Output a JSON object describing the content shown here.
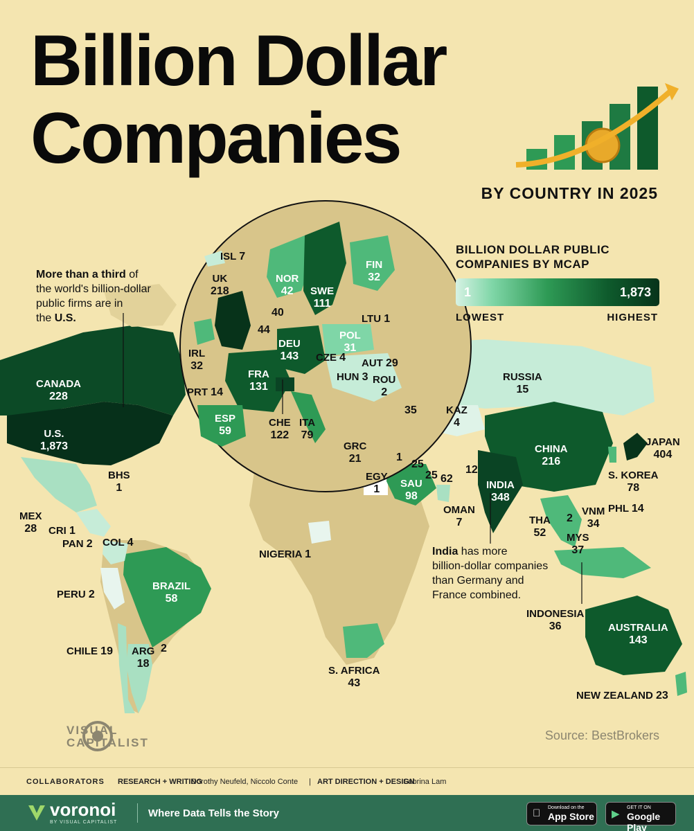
{
  "header": {
    "title_line1": "Billion Dollar",
    "title_line2": "Companies",
    "subtitle": "BY COUNTRY IN 2025"
  },
  "legend": {
    "title": "BILLION DOLLAR PUBLIC COMPANIES BY MCAP",
    "min": "1",
    "max": "1,873",
    "low_label": "LOWEST",
    "high_label": "HIGHEST",
    "colors": [
      "#d6f2e4",
      "#7fd6a7",
      "#2e9a55",
      "#0e5a2c",
      "#07331a"
    ]
  },
  "notes": {
    "us_bold": "More than a third",
    "us_rest1": " of",
    "us_rest2": "the world's billion-dollar",
    "us_rest3": "public firms are in",
    "us_rest4": "the ",
    "us_bold2": "U.S.",
    "india_bold": "India",
    "india_rest1": " has more",
    "india_rest2": "billion-dollar companies",
    "india_rest3": "than Germany and",
    "india_rest4": "France combined."
  },
  "countries": [
    {
      "name": "CANADA",
      "value": "228"
    },
    {
      "name": "U.S.",
      "value": "1,873"
    },
    {
      "name": "BHS",
      "value": "1"
    },
    {
      "name": "MEX",
      "value": "28"
    },
    {
      "name": "CRI",
      "value": "1"
    },
    {
      "name": "PAN",
      "value": "2"
    },
    {
      "name": "COL",
      "value": "4"
    },
    {
      "name": "BRAZIL",
      "value": "58"
    },
    {
      "name": "PERU",
      "value": "2"
    },
    {
      "name": "CHILE",
      "value": "19"
    },
    {
      "name": "ARG",
      "value": "18"
    },
    {
      "name": "",
      "value": "2"
    },
    {
      "name": "NIGERIA",
      "value": "1"
    },
    {
      "name": "S. AFRICA",
      "value": "43"
    },
    {
      "name": "EGY",
      "value": "1"
    },
    {
      "name": "SAU",
      "value": "98"
    },
    {
      "name": "",
      "value": "1"
    },
    {
      "name": "",
      "value": "25"
    },
    {
      "name": "",
      "value": "25"
    },
    {
      "name": "",
      "value": "62"
    },
    {
      "name": "",
      "value": "12"
    },
    {
      "name": "OMAN",
      "value": "7"
    },
    {
      "name": "INDIA",
      "value": "348"
    },
    {
      "name": "RUSSIA",
      "value": "15"
    },
    {
      "name": "KAZ",
      "value": "4"
    },
    {
      "name": "",
      "value": "35"
    },
    {
      "name": "CHINA",
      "value": "216"
    },
    {
      "name": "JAPAN",
      "value": "404"
    },
    {
      "name": "S. KOREA",
      "value": "78"
    },
    {
      "name": "VNM",
      "value": "34"
    },
    {
      "name": "",
      "value": "2"
    },
    {
      "name": "PHL",
      "value": "14"
    },
    {
      "name": "THA",
      "value": "52"
    },
    {
      "name": "MYS",
      "value": "37"
    },
    {
      "name": "INDONESIA",
      "value": "36"
    },
    {
      "name": "AUSTRALIA",
      "value": "143"
    },
    {
      "name": "NEW ZEALAND",
      "value": "23"
    }
  ],
  "europe": [
    {
      "name": "ISL",
      "value": "7"
    },
    {
      "name": "UK",
      "value": "218"
    },
    {
      "name": "NOR",
      "value": "42"
    },
    {
      "name": "SWE",
      "value": "111"
    },
    {
      "name": "FIN",
      "value": "32"
    },
    {
      "name": "",
      "value": "40"
    },
    {
      "name": "",
      "value": "44"
    },
    {
      "name": "LTU",
      "value": "1"
    },
    {
      "name": "IRL",
      "value": "32"
    },
    {
      "name": "DEU",
      "value": "143"
    },
    {
      "name": "POL",
      "value": "31"
    },
    {
      "name": "CZE",
      "value": "4"
    },
    {
      "name": "AUT",
      "value": "29"
    },
    {
      "name": "HUN",
      "value": "3"
    },
    {
      "name": "ROU",
      "value": "2"
    },
    {
      "name": "FRA",
      "value": "131"
    },
    {
      "name": "PRT",
      "value": "14"
    },
    {
      "name": "ESP",
      "value": "59"
    },
    {
      "name": "CHE",
      "value": "122"
    },
    {
      "name": "ITA",
      "value": "79"
    },
    {
      "name": "GRC",
      "value": "21"
    }
  ],
  "source": "Source: BestBrokers",
  "brand": {
    "vc_line1": "VISUAL",
    "vc_line2": "CAPITALIST"
  },
  "collaborators": {
    "label": "COLLABORATORS",
    "research_label": "RESEARCH + WRITING",
    "research_names": "Dorothy Neufeld, Niccolo Conte",
    "sep": "|",
    "art_label": "ART DIRECTION + DESIGN",
    "art_names": "Sabrina Lam"
  },
  "footer": {
    "brand": "voronoi",
    "brand_sub": "BY VISUAL CAPITALIST",
    "tagline": "Where Data Tells the Story",
    "appstore_small": "Download on the",
    "appstore_big": "App Store",
    "gplay_small": "GET IT ON",
    "gplay_big": "Google Play"
  }
}
